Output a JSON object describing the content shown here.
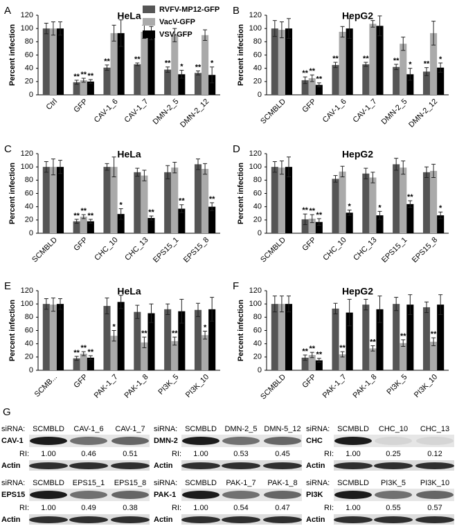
{
  "chart_data": [
    {
      "type": "bar",
      "label": "A",
      "title": "HeLa",
      "ylabel": "Percent infection",
      "categories": [
        "Ctrl",
        "GFP",
        "CAV-1_6",
        "CAV-1_7",
        "DMN-2_5",
        "DMN-2_12"
      ],
      "ylim": [
        0,
        120
      ],
      "yticks": [
        0,
        20,
        40,
        60,
        80,
        100,
        120
      ],
      "series": [
        {
          "name": "RVFV-MP12-GFP",
          "color": "#555555",
          "values": [
            100,
            19,
            41,
            46,
            38,
            33
          ],
          "errors": [
            8,
            3,
            4,
            2,
            4,
            3
          ],
          "stars": [
            null,
            "**",
            "**",
            "**",
            "**",
            "**"
          ]
        },
        {
          "name": "VacV-GFP",
          "color": "#aaaaaa",
          "values": [
            100,
            22,
            93,
            95,
            90,
            90
          ],
          "errors": [
            10,
            3,
            12,
            10,
            10,
            8
          ],
          "stars": [
            null,
            "**",
            null,
            null,
            null,
            null
          ]
        },
        {
          "name": "VSV-GFP",
          "color": "#000000",
          "values": [
            100,
            20,
            93,
            93,
            31,
            30
          ],
          "errors": [
            10,
            3,
            20,
            10,
            6,
            12
          ],
          "stars": [
            null,
            "**",
            null,
            null,
            "*",
            "*"
          ]
        }
      ]
    },
    {
      "type": "bar",
      "label": "B",
      "title": "HepG2",
      "ylabel": "Percent infection",
      "categories": [
        "SCMBLD",
        "GFP",
        "CAV-1_6",
        "CAV-1_7",
        "DMN-2_5",
        "DMN-2_12"
      ],
      "ylim": [
        0,
        120
      ],
      "yticks": [
        0,
        20,
        40,
        60,
        80,
        100,
        120
      ],
      "series": [
        {
          "color": "#555555",
          "values": [
            100,
            22,
            45,
            46,
            42,
            35
          ],
          "errors": [
            12,
            5,
            4,
            3,
            4,
            6
          ],
          "stars": [
            null,
            "**",
            "**",
            "**",
            "**",
            "**"
          ]
        },
        {
          "color": "#aaaaaa",
          "values": [
            98,
            25,
            95,
            107,
            77,
            93
          ],
          "errors": [
            12,
            5,
            8,
            5,
            10,
            18
          ],
          "stars": [
            null,
            "**",
            null,
            null,
            null,
            null
          ]
        },
        {
          "color": "#000000",
          "values": [
            100,
            15,
            100,
            104,
            31,
            41
          ],
          "errors": [
            15,
            3,
            15,
            15,
            9,
            7
          ],
          "stars": [
            null,
            "**",
            null,
            null,
            "*",
            "*"
          ]
        }
      ]
    },
    {
      "type": "bar",
      "label": "C",
      "title": "HeLa",
      "ylabel": "Percent infection",
      "categories": [
        "SCMBLD",
        "GFP",
        "CHC_10",
        "CHC_13",
        "EPS15_1",
        "EPS15_8"
      ],
      "ylim": [
        0,
        120
      ],
      "yticks": [
        0,
        20,
        40,
        60,
        80,
        100,
        120
      ],
      "series": [
        {
          "color": "#555555",
          "values": [
            100,
            18,
            100,
            92,
            92,
            104
          ],
          "errors": [
            8,
            3,
            5,
            6,
            10,
            8
          ],
          "stars": [
            null,
            "**",
            null,
            null,
            null,
            null
          ]
        },
        {
          "color": "#aaaaaa",
          "values": [
            100,
            25,
            100,
            87,
            99,
            97
          ],
          "errors": [
            12,
            3,
            15,
            8,
            8,
            8
          ],
          "stars": [
            null,
            "**",
            null,
            null,
            null,
            null
          ]
        },
        {
          "color": "#000000",
          "values": [
            100,
            18,
            29,
            23,
            37,
            40
          ],
          "errors": [
            10,
            3,
            8,
            3,
            6,
            6
          ],
          "stars": [
            null,
            "**",
            "*",
            "**",
            "**",
            "**"
          ]
        }
      ]
    },
    {
      "type": "bar",
      "label": "D",
      "title": "HepG2",
      "ylabel": "Percent infection",
      "categories": [
        "SCMBLD",
        "GFP",
        "CHC_10",
        "CHC_13",
        "EPS15_1",
        "EPS15_8"
      ],
      "ylim": [
        0,
        120
      ],
      "yticks": [
        0,
        20,
        40,
        60,
        80,
        100,
        120
      ],
      "series": [
        {
          "color": "#555555",
          "values": [
            100,
            21,
            82,
            90,
            104,
            92
          ],
          "errors": [
            8,
            8,
            5,
            8,
            9,
            8
          ],
          "stars": [
            null,
            "**",
            null,
            null,
            null,
            null
          ]
        },
        {
          "color": "#aaaaaa",
          "values": [
            99,
            22,
            93,
            84,
            99,
            94
          ],
          "errors": [
            10,
            6,
            8,
            8,
            10,
            10
          ],
          "stars": [
            null,
            "**",
            null,
            null,
            null,
            null
          ]
        },
        {
          "color": "#000000",
          "values": [
            100,
            17,
            31,
            27,
            44,
            27
          ],
          "errors": [
            15,
            5,
            4,
            6,
            5,
            5
          ],
          "stars": [
            null,
            "**",
            "*",
            "*",
            "**",
            "*"
          ]
        }
      ]
    },
    {
      "type": "bar",
      "label": "E",
      "title": "HeLa",
      "ylabel": "Percent infection",
      "categories": [
        "SCMB...",
        "GFP",
        "PAK-1_7",
        "PAK-1_8",
        "PI3K_5",
        "PI3K_10"
      ],
      "ylim": [
        0,
        120
      ],
      "yticks": [
        0,
        20,
        40,
        60,
        80,
        100,
        120
      ],
      "series": [
        {
          "color": "#555555",
          "values": [
            100,
            18,
            97,
            88,
            92,
            91
          ],
          "errors": [
            8,
            3,
            12,
            10,
            8,
            10
          ],
          "stars": [
            null,
            "**",
            null,
            null,
            null,
            null
          ]
        },
        {
          "color": "#aaaaaa",
          "values": [
            99,
            25,
            52,
            42,
            44,
            53
          ],
          "errors": [
            10,
            3,
            8,
            8,
            6,
            6
          ],
          "stars": [
            null,
            "**",
            "*",
            "**",
            "**",
            "*"
          ]
        },
        {
          "color": "#000000",
          "values": [
            100,
            19,
            103,
            86,
            89,
            92
          ],
          "errors": [
            8,
            3,
            10,
            14,
            18,
            18
          ],
          "stars": [
            null,
            "**",
            null,
            null,
            null,
            null
          ]
        }
      ]
    },
    {
      "type": "bar",
      "label": "F",
      "title": "HepG2",
      "ylabel": "Percent infection",
      "categories": [
        "SCMBLD",
        "GFP",
        "PAK-1_7",
        "PAK-1_8",
        "PI3K_5",
        "PI3K_10"
      ],
      "ylim": [
        0,
        120
      ],
      "yticks": [
        0,
        20,
        40,
        60,
        80,
        100,
        120
      ],
      "series": [
        {
          "color": "#555555",
          "values": [
            100,
            19,
            93,
            99,
            100,
            95
          ],
          "errors": [
            12,
            4,
            8,
            8,
            10,
            8
          ],
          "stars": [
            null,
            "**",
            null,
            null,
            null,
            null
          ]
        },
        {
          "color": "#aaaaaa",
          "values": [
            100,
            23,
            24,
            33,
            41,
            43
          ],
          "errors": [
            12,
            4,
            4,
            4,
            5,
            6
          ],
          "stars": [
            null,
            "**",
            "**",
            "**",
            "**",
            "**"
          ]
        },
        {
          "color": "#000000",
          "values": [
            100,
            15,
            87,
            92,
            99,
            99
          ],
          "errors": [
            12,
            3,
            20,
            20,
            15,
            15
          ],
          "stars": [
            null,
            "**",
            null,
            null,
            null,
            null
          ]
        }
      ]
    }
  ],
  "blot_panel": {
    "label": "G",
    "blots": [
      {
        "sirna_label": "siRNA:",
        "lanes": [
          "SCMBLD",
          "CAV-1_6",
          "CAV-1_7"
        ],
        "target": "CAV-1",
        "ri_label": "RI:",
        "ri": [
          "1.00",
          "0.46",
          "0.51"
        ],
        "loading": "Actin"
      },
      {
        "sirna_label": "siRNA:",
        "lanes": [
          "SCMBLD",
          "DMN-2_5",
          "DMN-5_12"
        ],
        "target": "DMN-2",
        "ri_label": "RI:",
        "ri": [
          "1.00",
          "0.53",
          "0.45"
        ],
        "loading": "Actin"
      },
      {
        "sirna_label": "siRNA:",
        "lanes": [
          "SCMBLD",
          "CHC_10",
          "CHC_13"
        ],
        "target": "CHC",
        "ri_label": "RI:",
        "ri": [
          "1.00",
          "0.25",
          "0.12"
        ],
        "loading": "Actin"
      },
      {
        "sirna_label": "siRNA:",
        "lanes": [
          "SCMBLD",
          "EPS15_1",
          "EPS15_8"
        ],
        "target": "EPS15",
        "ri_label": "RI:",
        "ri": [
          "1.00",
          "0.49",
          "0.38"
        ],
        "loading": "Actin"
      },
      {
        "sirna_label": "siRNA:",
        "lanes": [
          "SCMBLD",
          "PAK-1_7",
          "PAK-1_8"
        ],
        "target": "PAK-1",
        "ri_label": "RI:",
        "ri": [
          "1.00",
          "0.54",
          "0.47"
        ],
        "loading": "Actin"
      },
      {
        "sirna_label": "siRNA:",
        "lanes": [
          "SCMBLD",
          "PI3K_5",
          "PI3K_10"
        ],
        "target": "PI3K",
        "ri_label": "RI:",
        "ri": [
          "1.00",
          "0.55",
          "0.57"
        ],
        "loading": "Actin"
      }
    ]
  }
}
